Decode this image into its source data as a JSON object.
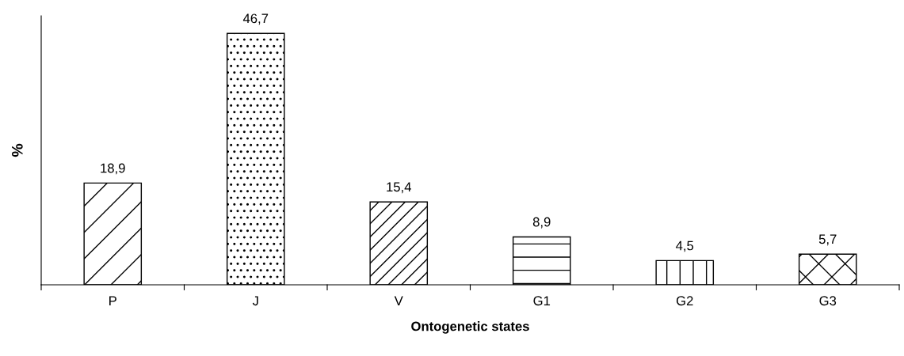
{
  "chart_data": {
    "type": "bar",
    "xlabel": "Ontogenetic states",
    "ylabel": "%",
    "categories": [
      "P",
      "J",
      "V",
      "G1",
      "G2",
      "G3"
    ],
    "values": [
      18.9,
      46.7,
      15.4,
      8.9,
      4.5,
      5.7
    ],
    "value_labels": [
      "18,9",
      "46,7",
      "15,4",
      "8,9",
      "4,5",
      "5,7"
    ],
    "grid": false,
    "legend": false
  }
}
